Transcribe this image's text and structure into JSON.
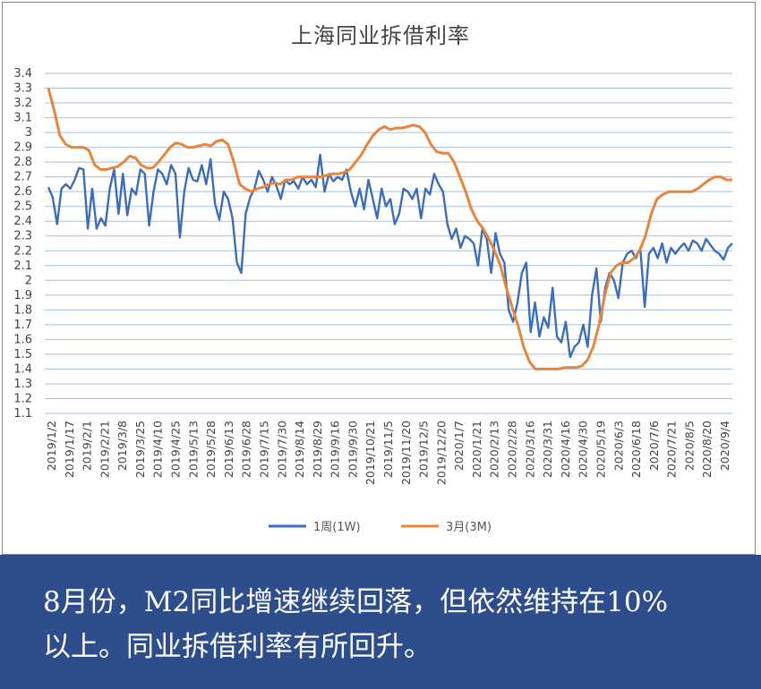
{
  "caption": {
    "text": "8月份，M2同比增速继续回落，但依然维持在10%以上。同业拆借利率有所回升。"
  },
  "colors": {
    "series_1w": "#3d6db4",
    "series_3m": "#e8843c",
    "caption_bg": "#2e4d8c",
    "grid": "#a8c0e0"
  },
  "chart_data": {
    "type": "line",
    "title": "上海同业拆借利率",
    "ylim": [
      1.1,
      3.4
    ],
    "y_ticks": [
      "1.1",
      "1.2",
      "1.3",
      "1.4",
      "1.5",
      "1.6",
      "1.7",
      "1.8",
      "1.9",
      "2",
      "2.1",
      "2.2",
      "2.3",
      "2.4",
      "2.5",
      "2.6",
      "2.7",
      "2.8",
      "2.9",
      "3",
      "3.1",
      "3.2",
      "3.3",
      "3.4"
    ],
    "x_ticks": [
      "2019/1/2",
      "2019/1/17",
      "2019/2/1",
      "2019/2/21",
      "2019/3/8",
      "2019/3/25",
      "2019/4/10",
      "2019/4/25",
      "2019/5/13",
      "2019/5/28",
      "2019/6/13",
      "2019/6/28",
      "2019/7/15",
      "2019/7/30",
      "2019/8/14",
      "2019/8/29",
      "2019/9/16",
      "2019/9/30",
      "2019/10/21",
      "2019/11/5",
      "2019/11/20",
      "2019/12/5",
      "2019/12/20",
      "2020/1/7",
      "2020/1/21",
      "2020/2/13",
      "2020/2/28",
      "2020/3/16",
      "2020/3/31",
      "2020/4/16",
      "2020/4/30",
      "2020/5/19",
      "2020/6/3",
      "2020/6/18",
      "2020/7/6",
      "2020/7/21",
      "2020/8/5",
      "2020/8/20",
      "2020/9/4"
    ],
    "legend_position": "bottom",
    "grid": true,
    "series": [
      {
        "name": "1周(1W)",
        "values": [
          2.63,
          2.56,
          2.38,
          2.62,
          2.65,
          2.62,
          2.68,
          2.76,
          2.75,
          2.35,
          2.62,
          2.35,
          2.42,
          2.37,
          2.62,
          2.75,
          2.45,
          2.72,
          2.44,
          2.62,
          2.58,
          2.75,
          2.72,
          2.37,
          2.6,
          2.75,
          2.72,
          2.65,
          2.78,
          2.72,
          2.29,
          2.6,
          2.76,
          2.68,
          2.67,
          2.78,
          2.65,
          2.82,
          2.52,
          2.41,
          2.6,
          2.55,
          2.42,
          2.12,
          2.05,
          2.45,
          2.56,
          2.62,
          2.74,
          2.68,
          2.6,
          2.7,
          2.64,
          2.55,
          2.68,
          2.65,
          2.67,
          2.62,
          2.7,
          2.65,
          2.68,
          2.63,
          2.85,
          2.6,
          2.72,
          2.67,
          2.7,
          2.68,
          2.75,
          2.6,
          2.5,
          2.62,
          2.48,
          2.68,
          2.55,
          2.42,
          2.62,
          2.5,
          2.55,
          2.38,
          2.45,
          2.62,
          2.6,
          2.55,
          2.62,
          2.42,
          2.62,
          2.58,
          2.72,
          2.65,
          2.6,
          2.38,
          2.28,
          2.35,
          2.22,
          2.3,
          2.28,
          2.25,
          2.1,
          2.35,
          2.28,
          2.05,
          2.32,
          2.18,
          2.12,
          1.8,
          1.72,
          1.85,
          2.05,
          2.12,
          1.65,
          1.85,
          1.62,
          1.75,
          1.68,
          1.95,
          1.62,
          1.58,
          1.72,
          1.48,
          1.55,
          1.58,
          1.7,
          1.55,
          1.9,
          2.08,
          1.72,
          1.95,
          2.05,
          2.0,
          1.88,
          2.12,
          2.18,
          2.2,
          2.15,
          2.22,
          1.82,
          2.18,
          2.22,
          2.15,
          2.25,
          2.12,
          2.22,
          2.18,
          2.22,
          2.25,
          2.2,
          2.27,
          2.25,
          2.2,
          2.28,
          2.24,
          2.2,
          2.18,
          2.14,
          2.22,
          2.25
        ]
      },
      {
        "name": "3月(3M)",
        "values": [
          3.3,
          3.15,
          2.98,
          2.92,
          2.9,
          2.9,
          2.9,
          2.88,
          2.78,
          2.75,
          2.75,
          2.76,
          2.77,
          2.8,
          2.84,
          2.83,
          2.78,
          2.76,
          2.76,
          2.8,
          2.85,
          2.9,
          2.93,
          2.92,
          2.9,
          2.9,
          2.91,
          2.92,
          2.91,
          2.94,
          2.95,
          2.92,
          2.8,
          2.65,
          2.62,
          2.6,
          2.62,
          2.63,
          2.65,
          2.66,
          2.65,
          2.68,
          2.68,
          2.7,
          2.7,
          2.7,
          2.7,
          2.7,
          2.71,
          2.72,
          2.72,
          2.73,
          2.75,
          2.8,
          2.85,
          2.92,
          2.98,
          3.02,
          3.04,
          3.02,
          3.03,
          3.03,
          3.04,
          3.05,
          3.04,
          3.0,
          2.92,
          2.87,
          2.86,
          2.86,
          2.8,
          2.7,
          2.6,
          2.48,
          2.4,
          2.35,
          2.28,
          2.2,
          2.1,
          1.95,
          1.82,
          1.7,
          1.55,
          1.45,
          1.4,
          1.4,
          1.4,
          1.4,
          1.4,
          1.41,
          1.41,
          1.41,
          1.42,
          1.46,
          1.55,
          1.7,
          1.9,
          2.05,
          2.1,
          2.12,
          2.12,
          2.15,
          2.2,
          2.3,
          2.45,
          2.55,
          2.58,
          2.6,
          2.6,
          2.6,
          2.6,
          2.6,
          2.62,
          2.65,
          2.68,
          2.7,
          2.7,
          2.68,
          2.68
        ]
      }
    ]
  }
}
